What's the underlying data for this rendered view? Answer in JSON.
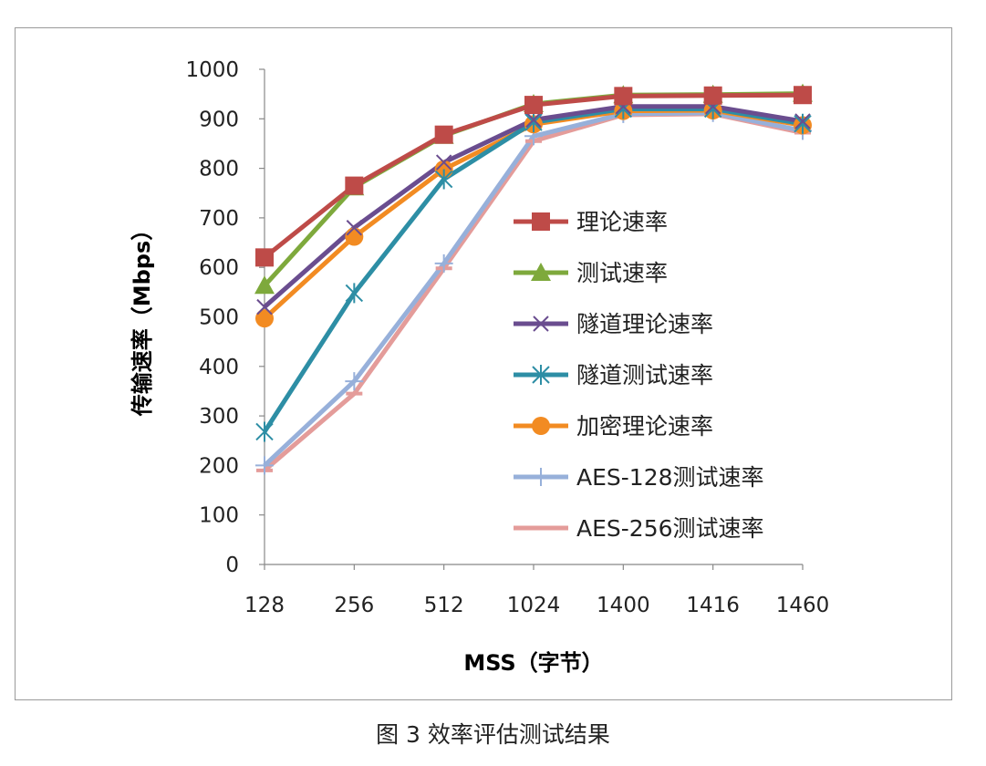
{
  "caption": "图 3  效率评估测试结果",
  "chart_data": {
    "type": "line",
    "title": "",
    "xlabel": "MSS（字节）",
    "ylabel": "传输速率（Mbps）",
    "categories": [
      "128",
      "256",
      "512",
      "1024",
      "1400",
      "1416",
      "1460"
    ],
    "ylim": [
      0,
      1000
    ],
    "yticks": [
      0,
      100,
      200,
      300,
      400,
      500,
      600,
      700,
      800,
      900,
      1000
    ],
    "grid": false,
    "legend_position": "center-right",
    "series": [
      {
        "name": "理论速率",
        "color": "#be4b48",
        "marker": "square",
        "values": [
          620,
          765,
          868,
          928,
          946,
          947,
          948
        ]
      },
      {
        "name": "测试速率",
        "color": "#7ea93c",
        "marker": "triangle",
        "values": [
          563,
          762,
          866,
          930,
          948,
          949,
          951
        ]
      },
      {
        "name": "隧道理论速率",
        "color": "#6a4d8f",
        "marker": "x",
        "values": [
          520,
          680,
          812,
          898,
          925,
          925,
          895
        ]
      },
      {
        "name": "隧道测试速率",
        "color": "#2d8ea5",
        "marker": "asterisk",
        "values": [
          268,
          548,
          778,
          893,
          920,
          920,
          890
        ]
      },
      {
        "name": "加密理论速率",
        "color": "#f28b22",
        "marker": "circle",
        "values": [
          497,
          662,
          798,
          889,
          916,
          917,
          887
        ]
      },
      {
        "name": "AES-128测试速率",
        "color": "#97b0da",
        "marker": "plus",
        "values": [
          200,
          370,
          608,
          865,
          910,
          912,
          876
        ]
      },
      {
        "name": "AES-256测试速率",
        "color": "#e49c9a",
        "marker": "dash",
        "values": [
          190,
          345,
          598,
          855,
          908,
          910,
          872
        ]
      }
    ]
  }
}
